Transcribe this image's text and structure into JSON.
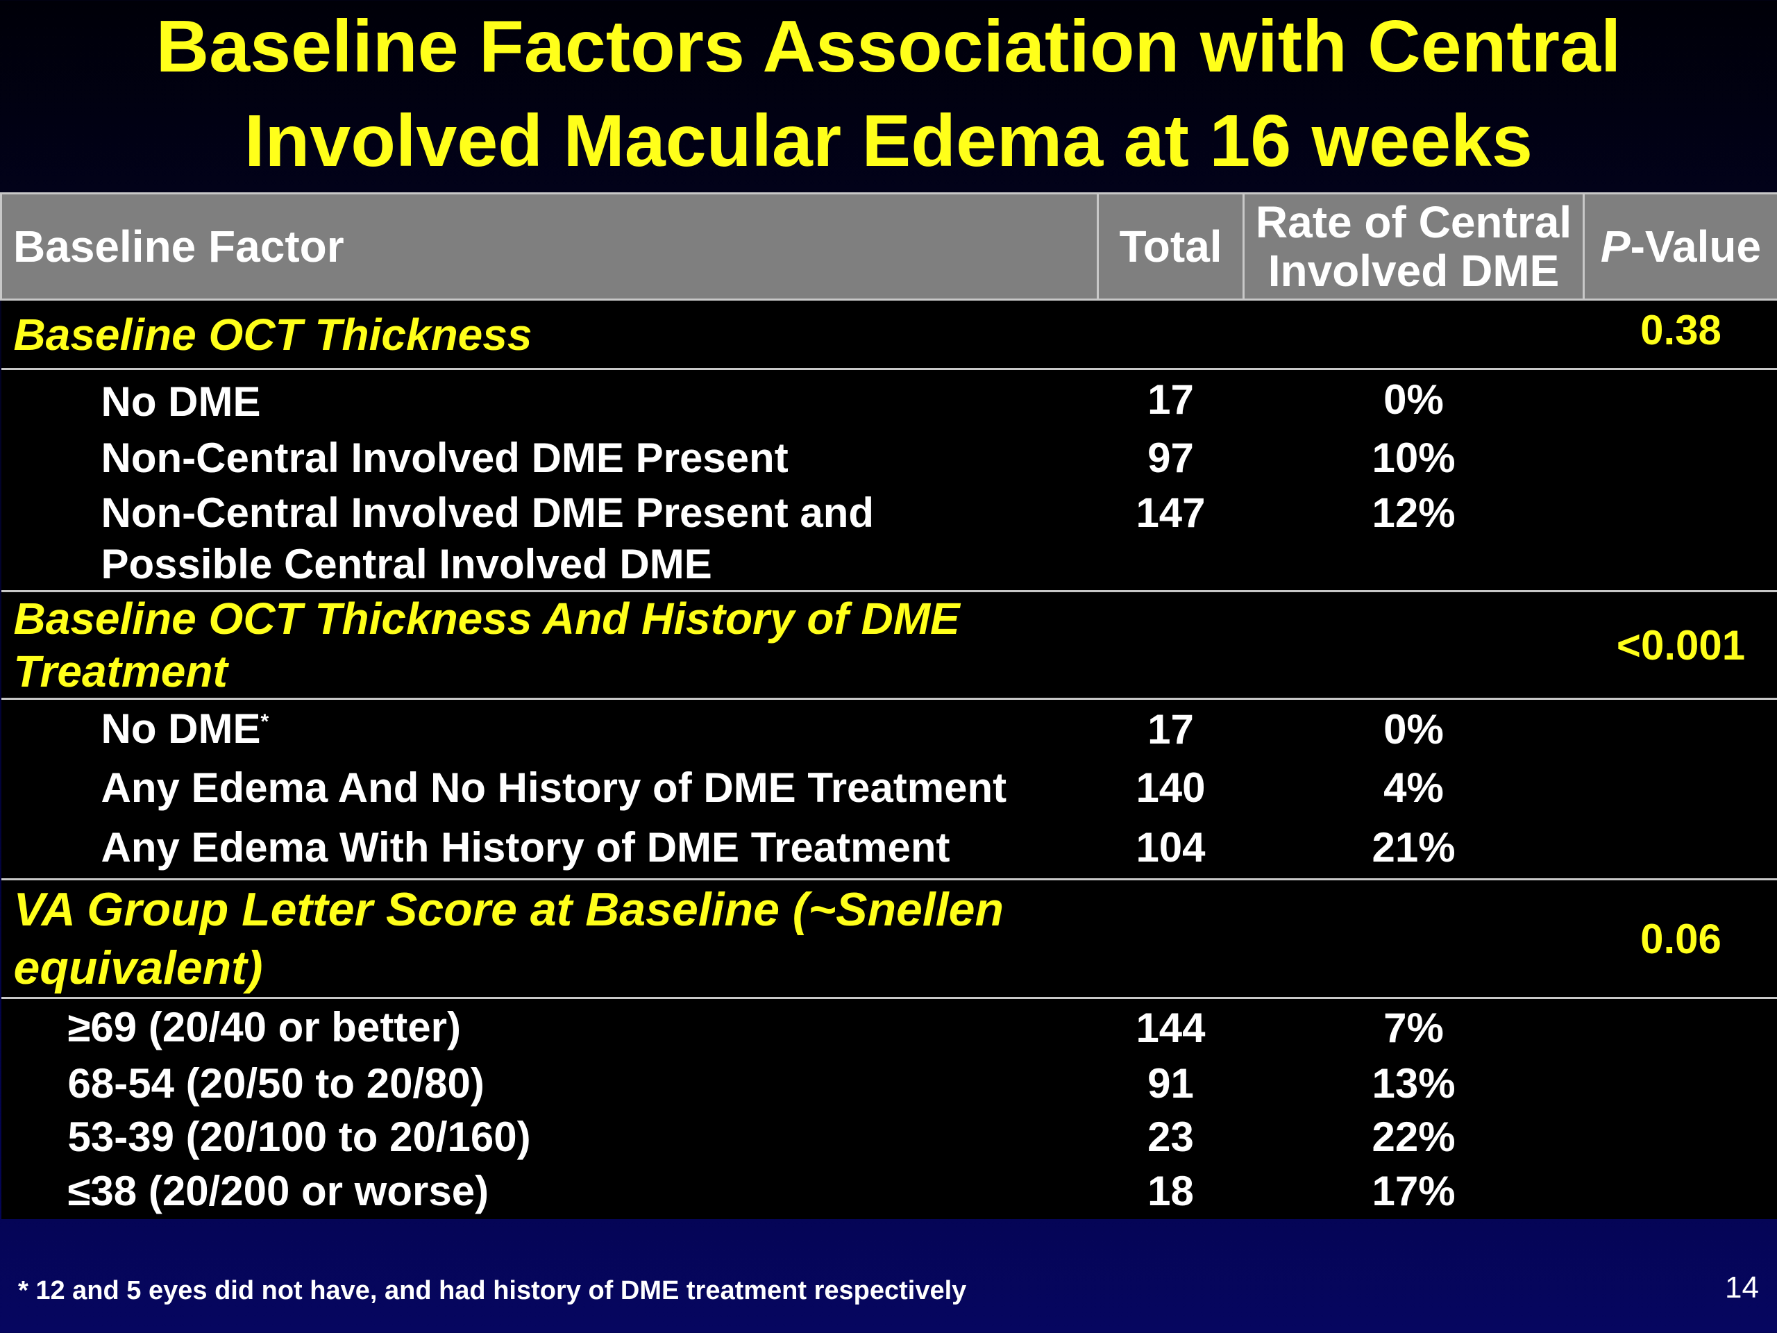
{
  "title": {
    "line1": "Baseline Factors Association with Central",
    "line2": "Involved Macular Edema at 16 weeks"
  },
  "table": {
    "headers": {
      "factor": "Baseline Factor",
      "total": "Total",
      "rate_line1": "Rate of Central",
      "rate_line2": "Involved DME",
      "pvalue_italic": "P",
      "pvalue_rest": "-Value"
    },
    "sections": [
      {
        "name": "Baseline OCT Thickness",
        "p": "0.38",
        "rows": [
          {
            "factor": "No DME",
            "total": "17",
            "rate": "0%"
          },
          {
            "factor": "Non-Central Involved DME Present",
            "total": "97",
            "rate": "10%"
          },
          {
            "factor_line1": "Non-Central Involved DME Present and",
            "factor_line2": "Possible Central Involved DME",
            "total": "147",
            "rate": "12%"
          }
        ]
      },
      {
        "name_line1": "Baseline OCT Thickness And History of DME",
        "name_line2": "Treatment",
        "p": "<0.001",
        "rows": [
          {
            "factor": "No DME",
            "footnote_mark": "*",
            "total": "17",
            "rate": "0%"
          },
          {
            "factor": "Any Edema And No History of DME Treatment",
            "total": "140",
            "rate": "4%"
          },
          {
            "factor": "Any Edema With History of DME Treatment",
            "total": "104",
            "rate": "21%"
          }
        ]
      },
      {
        "name_line1": "VA Group Letter Score at Baseline (~Snellen",
        "name_line2": "equivalent)",
        "p": "0.06",
        "rows": [
          {
            "factor": "≥69 (20/40 or better)",
            "total": "144",
            "rate": "7%"
          },
          {
            "factor": "68-54 (20/50 to 20/80)",
            "total": "91",
            "rate": "13%"
          },
          {
            "factor": "53-39 (20/100 to 20/160)",
            "total": "23",
            "rate": "22%"
          },
          {
            "factor": "≤38 (20/200 or worse)",
            "total": "18",
            "rate": "17%"
          }
        ]
      }
    ]
  },
  "footnote": "* 12 and 5 eyes did not have, and had history of DME treatment respectively",
  "page_number": "14",
  "colors": {
    "title": "#ffff1a",
    "header_bg": "#7f7f7f",
    "section_text": "#ffff1a"
  }
}
